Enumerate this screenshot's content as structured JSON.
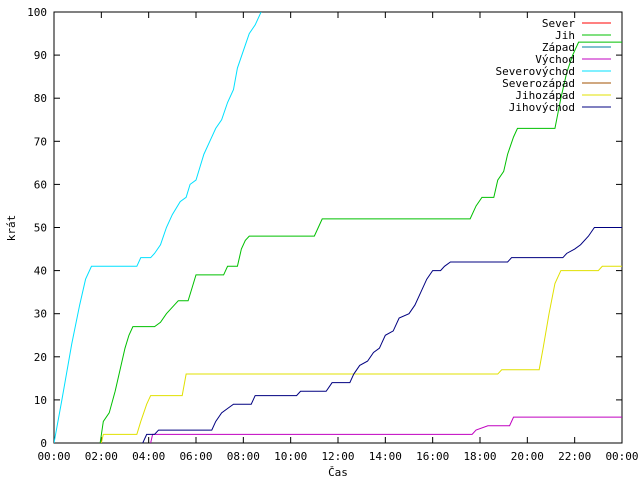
{
  "chart_data": {
    "type": "line",
    "xlabel": "Čas",
    "ylabel": "krát",
    "ylim": [
      0,
      100
    ],
    "xlim": [
      "00:00",
      "24:00"
    ],
    "y_ticks": [
      0,
      10,
      20,
      30,
      40,
      50,
      60,
      70,
      80,
      90,
      100
    ],
    "x_tick_labels": [
      "00:00",
      "02:00",
      "04:00",
      "06:00",
      "08:00",
      "10:00",
      "12:00",
      "14:00",
      "16:00",
      "18:00",
      "20:00",
      "22:00",
      "00:00"
    ],
    "grid": false,
    "legend_position": "top-right",
    "series": [
      {
        "name": "Sever",
        "color": "#ff0000",
        "points": []
      },
      {
        "name": "Jih",
        "color": "#00c000",
        "points": [
          [
            "01:57",
            0
          ],
          [
            "02:05",
            5
          ],
          [
            "02:20",
            7
          ],
          [
            "02:35",
            12
          ],
          [
            "02:50",
            18
          ],
          [
            "03:00",
            22
          ],
          [
            "03:10",
            25
          ],
          [
            "03:20",
            27
          ],
          [
            "04:15",
            27
          ],
          [
            "04:30",
            28
          ],
          [
            "04:45",
            30
          ],
          [
            "05:05",
            32
          ],
          [
            "05:15",
            33
          ],
          [
            "05:40",
            33
          ],
          [
            "05:50",
            36
          ],
          [
            "06:00",
            39
          ],
          [
            "07:10",
            39
          ],
          [
            "07:20",
            41
          ],
          [
            "07:45",
            41
          ],
          [
            "07:55",
            45
          ],
          [
            "08:05",
            47
          ],
          [
            "08:15",
            48
          ],
          [
            "11:00",
            48
          ],
          [
            "11:10",
            50
          ],
          [
            "11:20",
            52
          ],
          [
            "17:35",
            52
          ],
          [
            "17:50",
            55
          ],
          [
            "18:05",
            57
          ],
          [
            "18:35",
            57
          ],
          [
            "18:45",
            61
          ],
          [
            "19:00",
            63
          ],
          [
            "19:10",
            67
          ],
          [
            "19:25",
            71
          ],
          [
            "19:35",
            73
          ],
          [
            "21:10",
            73
          ],
          [
            "21:25",
            80
          ],
          [
            "21:40",
            86
          ],
          [
            "21:55",
            90
          ],
          [
            "22:10",
            93
          ],
          [
            "24:00",
            93
          ]
        ]
      },
      {
        "name": "Západ",
        "color": "#0080a0",
        "points": []
      },
      {
        "name": "Východ",
        "color": "#c000c0",
        "points": [
          [
            "04:05",
            0
          ],
          [
            "04:10",
            2
          ],
          [
            "17:40",
            2
          ],
          [
            "17:50",
            3
          ],
          [
            "18:20",
            4
          ],
          [
            "19:15",
            4
          ],
          [
            "19:25",
            6
          ],
          [
            "24:00",
            6
          ]
        ]
      },
      {
        "name": "Severovýchod",
        "color": "#00e0ff",
        "points": [
          [
            "00:00",
            0
          ],
          [
            "00:20",
            10
          ],
          [
            "00:45",
            23
          ],
          [
            "01:05",
            32
          ],
          [
            "01:20",
            38
          ],
          [
            "01:35",
            41
          ],
          [
            "03:30",
            41
          ],
          [
            "03:40",
            43
          ],
          [
            "04:05",
            43
          ],
          [
            "04:15",
            44
          ],
          [
            "04:30",
            46
          ],
          [
            "04:45",
            50
          ],
          [
            "05:00",
            53
          ],
          [
            "05:20",
            56
          ],
          [
            "05:35",
            57
          ],
          [
            "05:45",
            60
          ],
          [
            "06:00",
            61
          ],
          [
            "06:10",
            64
          ],
          [
            "06:20",
            67
          ],
          [
            "06:35",
            70
          ],
          [
            "06:50",
            73
          ],
          [
            "07:05",
            75
          ],
          [
            "07:20",
            79
          ],
          [
            "07:35",
            82
          ],
          [
            "07:45",
            87
          ],
          [
            "08:00",
            91
          ],
          [
            "08:15",
            95
          ],
          [
            "08:30",
            97
          ],
          [
            "08:45",
            100
          ]
        ]
      },
      {
        "name": "Severozápad",
        "color": "#a05000",
        "points": []
      },
      {
        "name": "Jihozápad",
        "color": "#e0e000",
        "points": [
          [
            "02:00",
            0
          ],
          [
            "02:05",
            2
          ],
          [
            "03:30",
            2
          ],
          [
            "03:40",
            5
          ],
          [
            "03:55",
            9
          ],
          [
            "04:05",
            11
          ],
          [
            "05:25",
            11
          ],
          [
            "05:35",
            16
          ],
          [
            "18:45",
            16
          ],
          [
            "18:55",
            17
          ],
          [
            "20:30",
            17
          ],
          [
            "20:40",
            22
          ],
          [
            "20:55",
            30
          ],
          [
            "21:10",
            37
          ],
          [
            "21:25",
            40
          ],
          [
            "23:00",
            40
          ],
          [
            "23:10",
            41
          ],
          [
            "24:00",
            41
          ]
        ]
      },
      {
        "name": "Jihovýchod",
        "color": "#000080",
        "points": [
          [
            "03:45",
            0
          ],
          [
            "03:55",
            2
          ],
          [
            "04:15",
            2
          ],
          [
            "04:25",
            3
          ],
          [
            "06:40",
            3
          ],
          [
            "06:50",
            5
          ],
          [
            "07:05",
            7
          ],
          [
            "07:20",
            8
          ],
          [
            "07:35",
            9
          ],
          [
            "08:20",
            9
          ],
          [
            "08:30",
            11
          ],
          [
            "10:15",
            11
          ],
          [
            "10:25",
            12
          ],
          [
            "11:30",
            12
          ],
          [
            "11:45",
            14
          ],
          [
            "12:30",
            14
          ],
          [
            "12:40",
            16
          ],
          [
            "12:55",
            18
          ],
          [
            "13:15",
            19
          ],
          [
            "13:30",
            21
          ],
          [
            "13:45",
            22
          ],
          [
            "14:00",
            25
          ],
          [
            "14:20",
            26
          ],
          [
            "14:35",
            29
          ],
          [
            "15:00",
            30
          ],
          [
            "15:15",
            32
          ],
          [
            "15:30",
            35
          ],
          [
            "15:45",
            38
          ],
          [
            "16:00",
            40
          ],
          [
            "16:20",
            40
          ],
          [
            "16:30",
            41
          ],
          [
            "16:45",
            42
          ],
          [
            "19:10",
            42
          ],
          [
            "19:20",
            43
          ],
          [
            "21:30",
            43
          ],
          [
            "21:40",
            44
          ],
          [
            "22:00",
            45
          ],
          [
            "22:15",
            46
          ],
          [
            "22:35",
            48
          ],
          [
            "22:50",
            50
          ],
          [
            "24:00",
            50
          ]
        ]
      }
    ]
  }
}
